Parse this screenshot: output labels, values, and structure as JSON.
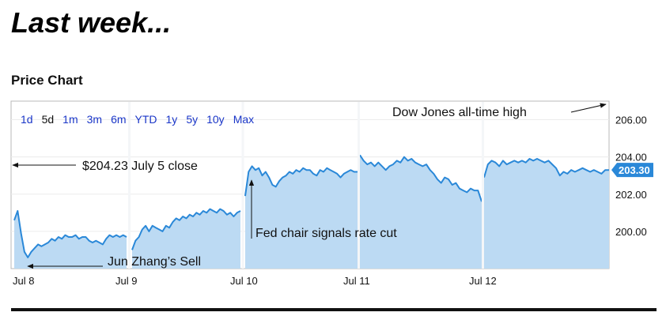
{
  "slide_title": "Last week...",
  "section_title": "Price Chart",
  "colors": {
    "line": "#2a88d8",
    "fill": "#bcdaf3",
    "range_link": "#1a36c8",
    "badge": "#2a88d8"
  },
  "range_buttons": [
    {
      "label": "1d",
      "active": false
    },
    {
      "label": "5d",
      "active": true
    },
    {
      "label": "1m",
      "active": false
    },
    {
      "label": "3m",
      "active": false
    },
    {
      "label": "6m",
      "active": false
    },
    {
      "label": "YTD",
      "active": false
    },
    {
      "label": "1y",
      "active": false
    },
    {
      "label": "5y",
      "active": false
    },
    {
      "label": "10y",
      "active": false
    },
    {
      "label": "Max",
      "active": false
    }
  ],
  "chart_data": {
    "type": "area",
    "title": "Price Chart",
    "ylim": [
      198.0,
      207.0
    ],
    "yticks": [
      200,
      202,
      204,
      206
    ],
    "ytick_labels": [
      "200.00",
      "202.00",
      "204.00",
      "206.00"
    ],
    "x_labels": [
      "Jul 8",
      "Jul 9",
      "Jul 10",
      "Jul 11",
      "Jul 12"
    ],
    "last_price": "203.30",
    "days": [
      {
        "date": "Jul 8",
        "values": [
          200.6,
          201.1,
          199.9,
          198.9,
          198.6,
          198.9,
          199.1,
          199.3,
          199.2,
          199.3,
          199.4,
          199.6,
          199.5,
          199.7,
          199.6,
          199.8,
          199.7,
          199.7,
          199.8,
          199.6,
          199.7,
          199.7,
          199.5,
          199.4,
          199.5,
          199.4,
          199.3,
          199.6,
          199.8,
          199.7,
          199.8,
          199.7,
          199.8,
          199.7
        ]
      },
      {
        "date": "Jul 9",
        "values": [
          199.0,
          199.5,
          199.7,
          200.1,
          200.3,
          200.0,
          200.3,
          200.2,
          200.1,
          200.0,
          200.3,
          200.2,
          200.5,
          200.7,
          200.6,
          200.8,
          200.7,
          200.9,
          200.8,
          201.0,
          200.9,
          201.1,
          201.0,
          201.2,
          201.1,
          201.0,
          201.2,
          201.1,
          200.9,
          201.0,
          200.8,
          201.0,
          201.1
        ]
      },
      {
        "date": "Jul 10",
        "values": [
          201.9,
          203.2,
          203.5,
          203.3,
          203.4,
          203.0,
          203.2,
          202.9,
          202.5,
          202.4,
          202.7,
          202.9,
          203.0,
          203.2,
          203.1,
          203.3,
          203.2,
          203.4,
          203.3,
          203.3,
          203.1,
          203.0,
          203.3,
          203.2,
          203.4,
          203.3,
          203.2,
          203.1,
          202.9,
          203.1,
          203.2,
          203.3,
          203.2,
          203.2
        ]
      },
      {
        "date": "Jul 11",
        "values": [
          204.1,
          203.8,
          203.6,
          203.7,
          203.5,
          203.7,
          203.5,
          203.3,
          203.5,
          203.6,
          203.8,
          203.7,
          204.0,
          203.8,
          203.9,
          203.7,
          203.6,
          203.5,
          203.6,
          203.3,
          203.1,
          202.8,
          202.6,
          202.9,
          202.8,
          202.5,
          202.6,
          202.3,
          202.2,
          202.1,
          202.3,
          202.2,
          202.2,
          201.6
        ]
      },
      {
        "date": "Jul 12",
        "values": [
          202.9,
          203.6,
          203.8,
          203.7,
          203.5,
          203.8,
          203.6,
          203.7,
          203.8,
          203.7,
          203.8,
          203.7,
          203.9,
          203.8,
          203.9,
          203.8,
          203.7,
          203.8,
          203.6,
          203.4,
          203.0,
          203.2,
          203.1,
          203.3,
          203.2,
          203.3,
          203.4,
          203.3,
          203.2,
          203.3,
          203.2,
          203.1,
          203.3,
          203.3
        ]
      }
    ],
    "annotations": [
      {
        "text": "Dow Jones all-time high",
        "arrow": "right"
      },
      {
        "text": "$204.23 July 5 close",
        "arrow": "left"
      },
      {
        "text": "Fed chair signals rate cut",
        "arrow": "up"
      },
      {
        "text": "Jun Zhang’s Sell",
        "arrow": "left"
      }
    ]
  }
}
